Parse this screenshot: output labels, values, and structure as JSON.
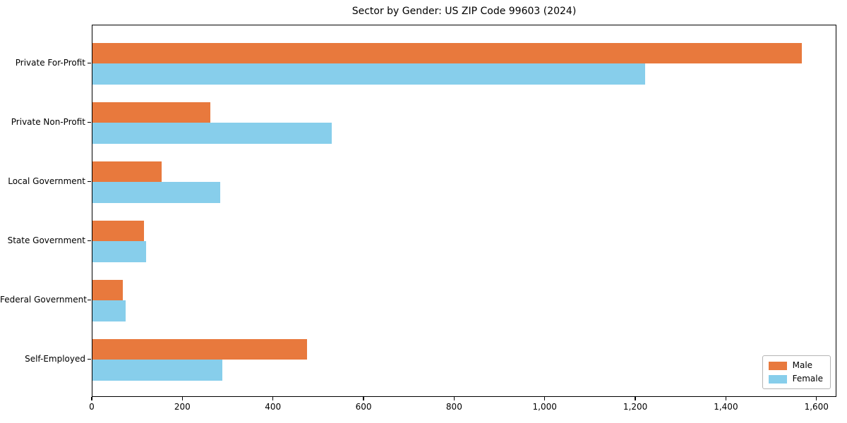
{
  "title": "Sector by Gender: US ZIP Code 99603 (2024)",
  "chart_data": {
    "type": "bar",
    "orientation": "horizontal",
    "title": "Sector by Gender: US ZIP Code 99603 (2024)",
    "categories": [
      "Private For-Profit",
      "Private Non-Profit",
      "Local Government",
      "State Government",
      "Federal Government",
      "Self-Employed"
    ],
    "series": [
      {
        "name": "Male",
        "color": "#e8793d",
        "values": [
          1566,
          261,
          153,
          114,
          67,
          474
        ]
      },
      {
        "name": "Female",
        "color": "#87ceeb",
        "values": [
          1220,
          529,
          282,
          119,
          73,
          287
        ]
      }
    ],
    "xlabel": "",
    "ylabel": "",
    "xlim": [
      0,
      1644
    ],
    "xticks": [
      {
        "value": 0,
        "label": "0"
      },
      {
        "value": 200,
        "label": "200"
      },
      {
        "value": 400,
        "label": "400"
      },
      {
        "value": 600,
        "label": "600"
      },
      {
        "value": 800,
        "label": "800"
      },
      {
        "value": 1000,
        "label": "1,000"
      },
      {
        "value": 1200,
        "label": "1,200"
      },
      {
        "value": 1400,
        "label": "1,400"
      },
      {
        "value": 1600,
        "label": "1,600"
      }
    ],
    "grid": false,
    "legend_position": "lower-right"
  }
}
